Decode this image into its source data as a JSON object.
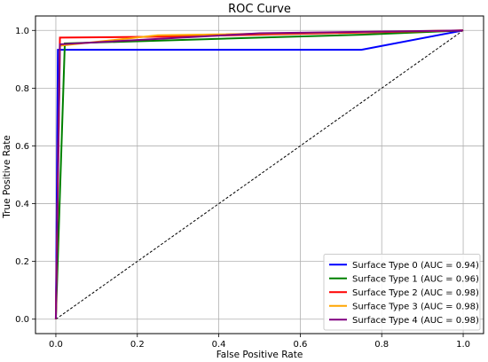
{
  "chart_data": {
    "type": "line",
    "title": "ROC Curve",
    "xlabel": "False Positive Rate",
    "ylabel": "True Positive Rate",
    "xlim": [
      -0.05,
      1.05
    ],
    "ylim": [
      -0.05,
      1.05
    ],
    "xticks": [
      0.0,
      0.2,
      0.4,
      0.6,
      0.8,
      1.0
    ],
    "yticks": [
      0.0,
      0.2,
      0.4,
      0.6,
      0.8,
      1.0
    ],
    "xtick_labels": [
      "0.0",
      "0.2",
      "0.4",
      "0.6",
      "0.8",
      "1.0"
    ],
    "ytick_labels": [
      "0.0",
      "0.2",
      "0.4",
      "0.6",
      "0.8",
      "1.0"
    ],
    "grid": true,
    "legend_position": "bottom-right",
    "reference_line": {
      "points": [
        [
          0,
          0
        ],
        [
          1,
          1
        ]
      ],
      "style": "dashed",
      "color": "#000000"
    },
    "series": [
      {
        "name": "Surface Type 0 (AUC = 0.94)",
        "color": "#0000ff",
        "points": [
          [
            0,
            0
          ],
          [
            0.005,
            0.933
          ],
          [
            0.75,
            0.933
          ],
          [
            1.0,
            1.0
          ]
        ]
      },
      {
        "name": "Surface Type 1 (AUC = 0.96)",
        "color": "#008000",
        "points": [
          [
            0,
            0
          ],
          [
            0.022,
            0.955
          ],
          [
            0.5,
            0.975
          ],
          [
            0.75,
            0.985
          ],
          [
            1.0,
            1.0
          ]
        ]
      },
      {
        "name": "Surface Type 2 (AUC = 0.98)",
        "color": "#ff0000",
        "points": [
          [
            0,
            0
          ],
          [
            0.01,
            0.975
          ],
          [
            0.25,
            0.978
          ],
          [
            1.0,
            1.0
          ]
        ]
      },
      {
        "name": "Surface Type 3 (AUC = 0.98)",
        "color": "#ffa500",
        "points": [
          [
            0,
            0
          ],
          [
            0.01,
            0.947
          ],
          [
            0.25,
            0.983
          ],
          [
            1.0,
            1.0
          ]
        ]
      },
      {
        "name": "Surface Type 4 (AUC = 0.98)",
        "color": "#800080",
        "points": [
          [
            0,
            0
          ],
          [
            0.01,
            0.952
          ],
          [
            0.5,
            0.99
          ],
          [
            1.0,
            1.0
          ]
        ]
      }
    ]
  }
}
